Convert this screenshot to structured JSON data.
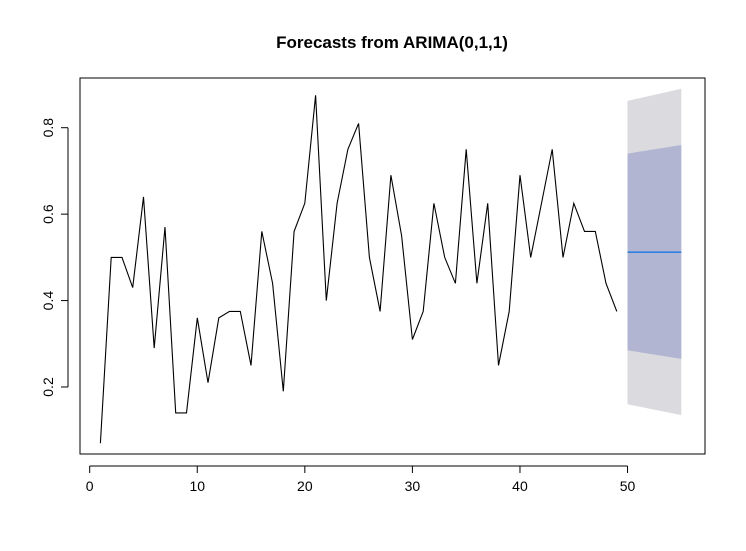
{
  "chart_data": {
    "type": "line",
    "title": "Forecasts from ARIMA(0,1,1)",
    "xlabel": "",
    "ylabel": "",
    "xlim": [
      -0.9,
      57.2
    ],
    "ylim": [
      0.045,
      0.915
    ],
    "x_ticks": [
      0,
      10,
      20,
      30,
      40,
      50
    ],
    "y_ticks": [
      0.2,
      0.4,
      0.6,
      0.8
    ],
    "grid": false,
    "legend": "none",
    "series": [
      {
        "color": "#000000",
        "x": [
          1,
          2,
          3,
          4,
          5,
          6,
          7,
          8,
          9,
          10,
          11,
          12,
          13,
          14,
          15,
          16,
          17,
          18,
          19,
          20,
          21,
          22,
          23,
          24,
          25,
          26,
          27,
          28,
          29,
          30,
          31,
          32,
          33,
          34,
          35,
          36,
          37,
          38,
          39,
          40,
          41,
          42,
          43,
          44,
          45,
          46,
          47,
          48,
          49
        ],
        "values": [
          0.07,
          0.5,
          0.5,
          0.43,
          0.64,
          0.29,
          0.57,
          0.14,
          0.14,
          0.36,
          0.21,
          0.36,
          0.375,
          0.375,
          0.25,
          0.56,
          0.44,
          0.19,
          0.56,
          0.625,
          0.875,
          0.4,
          0.625,
          0.75,
          0.81,
          0.5,
          0.375,
          0.69,
          0.55,
          0.31,
          0.375,
          0.625,
          0.5,
          0.44,
          0.75,
          0.44,
          0.625,
          0.25,
          0.375,
          0.69,
          0.5,
          0.625,
          0.75,
          0.5,
          0.625,
          0.56,
          0.56,
          0.44,
          0.375
        ]
      }
    ],
    "forecast": {
      "x": [
        50,
        55
      ],
      "mean": 0.512,
      "mean_color": "#2f80dd",
      "lower_80": [
        0.285,
        0.265
      ],
      "upper_80": [
        0.74,
        0.76
      ],
      "lower_95": [
        0.16,
        0.135
      ],
      "upper_95": [
        0.862,
        0.89
      ],
      "color_80": "#b1b5d2",
      "color_95": "#dadadf"
    }
  }
}
